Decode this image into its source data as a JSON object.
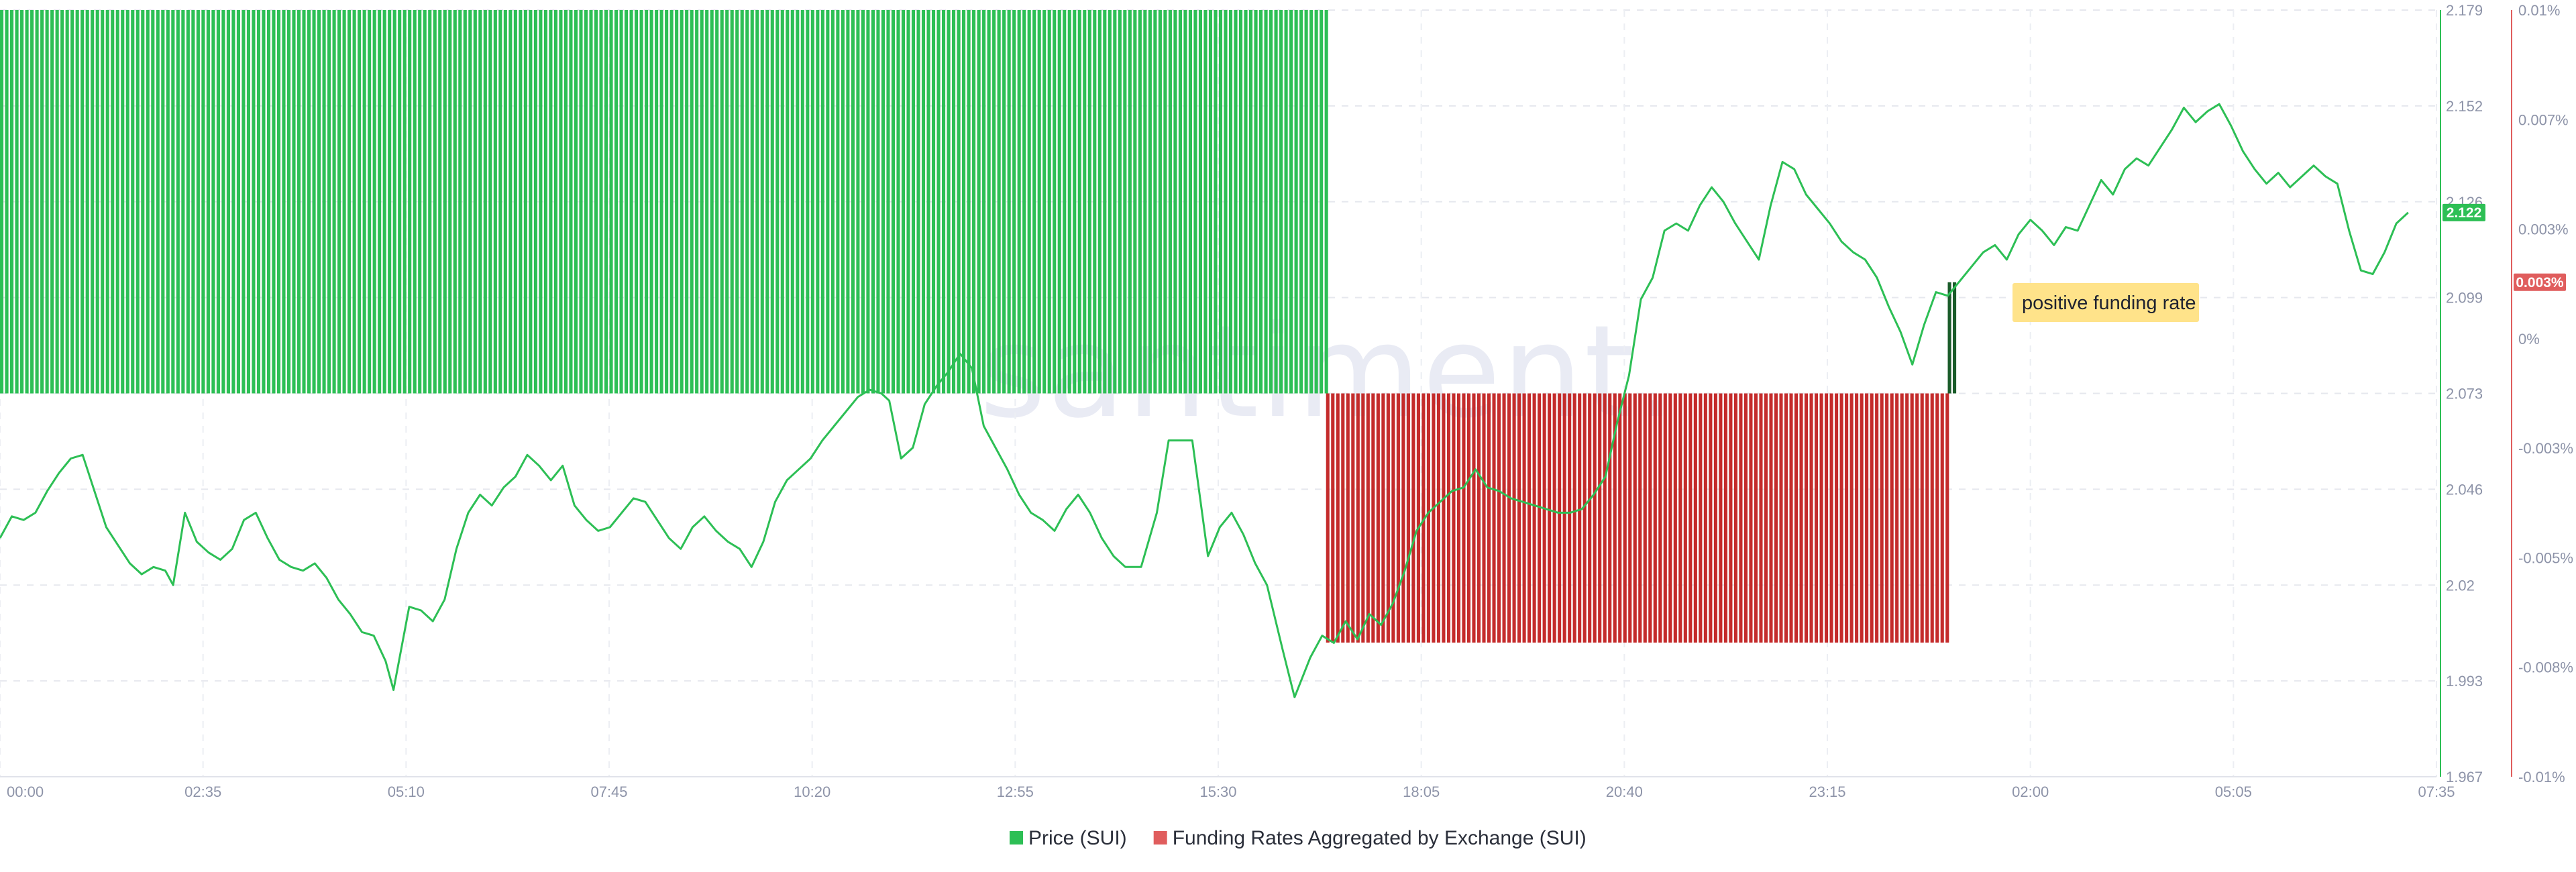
{
  "chart_data": {
    "type": "bar-line-combo",
    "watermark": "santiment.",
    "x_ticks": [
      "00:00",
      "02:35",
      "05:10",
      "07:45",
      "10:20",
      "12:55",
      "15:30",
      "18:05",
      "20:40",
      "23:15",
      "02:00",
      "05:05",
      "07:35"
    ],
    "y_left": {
      "ticks": [
        "2.179",
        "2.152",
        "2.126",
        "2.099",
        "2.073",
        "2.046",
        "2.02",
        "1.993",
        "1.967"
      ],
      "range": [
        1.967,
        2.179
      ]
    },
    "y_right": {
      "ticks": [
        "0.01%",
        "0.007%",
        "0.003%",
        "0%",
        "-0.003%",
        "-0.005%",
        "-0.008%",
        "-0.01%"
      ],
      "range": [
        -0.01,
        0.01
      ]
    },
    "price_last_label": "2.122",
    "funding_last_label": "0.003%",
    "annotation": "positive funding rate",
    "series": [
      {
        "name": "Price (SUI)",
        "kind": "line",
        "color": "#2dbf55",
        "points": [
          [
            0.0,
            2.033
          ],
          [
            0.15,
            2.039
          ],
          [
            0.3,
            2.038
          ],
          [
            0.45,
            2.04
          ],
          [
            0.6,
            2.046
          ],
          [
            0.75,
            2.051
          ],
          [
            0.9,
            2.055
          ],
          [
            1.05,
            2.056
          ],
          [
            1.2,
            2.046
          ],
          [
            1.35,
            2.036
          ],
          [
            1.5,
            2.031
          ],
          [
            1.65,
            2.026
          ],
          [
            1.8,
            2.023
          ],
          [
            1.95,
            2.025
          ],
          [
            2.1,
            2.024
          ],
          [
            2.2,
            2.02
          ],
          [
            2.35,
            2.04
          ],
          [
            2.5,
            2.032
          ],
          [
            2.65,
            2.029
          ],
          [
            2.8,
            2.027
          ],
          [
            2.95,
            2.03
          ],
          [
            3.1,
            2.038
          ],
          [
            3.25,
            2.04
          ],
          [
            3.4,
            2.033
          ],
          [
            3.55,
            2.027
          ],
          [
            3.7,
            2.025
          ],
          [
            3.85,
            2.024
          ],
          [
            4.0,
            2.026
          ],
          [
            4.15,
            2.022
          ],
          [
            4.3,
            2.016
          ],
          [
            4.45,
            2.012
          ],
          [
            4.6,
            2.007
          ],
          [
            4.75,
            2.006
          ],
          [
            4.9,
            1.999
          ],
          [
            5.0,
            1.991
          ],
          [
            5.2,
            2.014
          ],
          [
            5.35,
            2.013
          ],
          [
            5.5,
            2.01
          ],
          [
            5.65,
            2.016
          ],
          [
            5.8,
            2.03
          ],
          [
            5.95,
            2.04
          ],
          [
            6.1,
            2.045
          ],
          [
            6.25,
            2.042
          ],
          [
            6.4,
            2.047
          ],
          [
            6.55,
            2.05
          ],
          [
            6.7,
            2.056
          ],
          [
            6.85,
            2.053
          ],
          [
            7.0,
            2.049
          ],
          [
            7.15,
            2.053
          ],
          [
            7.3,
            2.042
          ],
          [
            7.45,
            2.038
          ],
          [
            7.6,
            2.035
          ],
          [
            7.75,
            2.036
          ],
          [
            7.9,
            2.04
          ],
          [
            8.05,
            2.044
          ],
          [
            8.2,
            2.043
          ],
          [
            8.35,
            2.038
          ],
          [
            8.5,
            2.033
          ],
          [
            8.65,
            2.03
          ],
          [
            8.8,
            2.036
          ],
          [
            8.95,
            2.039
          ],
          [
            9.1,
            2.035
          ],
          [
            9.25,
            2.032
          ],
          [
            9.4,
            2.03
          ],
          [
            9.55,
            2.025
          ],
          [
            9.7,
            2.032
          ],
          [
            9.85,
            2.043
          ],
          [
            10.0,
            2.049
          ],
          [
            10.15,
            2.052
          ],
          [
            10.3,
            2.055
          ],
          [
            10.45,
            2.06
          ],
          [
            10.6,
            2.064
          ],
          [
            10.75,
            2.068
          ],
          [
            10.9,
            2.072
          ],
          [
            11.05,
            2.074
          ],
          [
            11.2,
            2.073
          ],
          [
            11.3,
            2.071
          ],
          [
            11.45,
            2.055
          ],
          [
            11.6,
            2.058
          ],
          [
            11.75,
            2.07
          ],
          [
            11.9,
            2.075
          ],
          [
            12.05,
            2.079
          ],
          [
            12.2,
            2.084
          ],
          [
            12.35,
            2.08
          ],
          [
            12.5,
            2.064
          ],
          [
            12.65,
            2.058
          ],
          [
            12.8,
            2.052
          ],
          [
            12.95,
            2.045
          ],
          [
            13.1,
            2.04
          ],
          [
            13.25,
            2.038
          ],
          [
            13.4,
            2.035
          ],
          [
            13.55,
            2.041
          ],
          [
            13.7,
            2.045
          ],
          [
            13.85,
            2.04
          ],
          [
            14.0,
            2.033
          ],
          [
            14.15,
            2.028
          ],
          [
            14.3,
            2.025
          ],
          [
            14.5,
            2.025
          ],
          [
            14.7,
            2.04
          ],
          [
            14.85,
            2.06
          ],
          [
            15.0,
            2.06
          ],
          [
            15.15,
            2.06
          ],
          [
            15.35,
            2.028
          ],
          [
            15.5,
            2.036
          ],
          [
            15.65,
            2.04
          ],
          [
            15.8,
            2.034
          ],
          [
            15.95,
            2.026
          ],
          [
            16.1,
            2.02
          ],
          [
            16.3,
            2.002
          ],
          [
            16.45,
            1.989
          ],
          [
            16.65,
            2.0
          ],
          [
            16.8,
            2.006
          ],
          [
            16.95,
            2.004
          ],
          [
            17.1,
            2.01
          ],
          [
            17.25,
            2.005
          ],
          [
            17.4,
            2.012
          ],
          [
            17.55,
            2.009
          ],
          [
            17.7,
            2.015
          ],
          [
            17.85,
            2.024
          ],
          [
            18.0,
            2.035
          ],
          [
            18.15,
            2.04
          ],
          [
            18.3,
            2.043
          ],
          [
            18.45,
            2.046
          ],
          [
            18.6,
            2.047
          ],
          [
            18.75,
            2.052
          ],
          [
            18.9,
            2.047
          ],
          [
            19.05,
            2.046
          ],
          [
            19.2,
            2.044
          ],
          [
            19.35,
            2.043
          ],
          [
            19.5,
            2.042
          ],
          [
            19.65,
            2.041
          ],
          [
            19.8,
            2.04
          ],
          [
            19.95,
            2.04
          ],
          [
            20.1,
            2.041
          ],
          [
            20.25,
            2.045
          ],
          [
            20.4,
            2.05
          ],
          [
            20.55,
            2.065
          ],
          [
            20.7,
            2.078
          ],
          [
            20.85,
            2.099
          ],
          [
            21.0,
            2.105
          ],
          [
            21.15,
            2.118
          ],
          [
            21.3,
            2.12
          ],
          [
            21.45,
            2.118
          ],
          [
            21.6,
            2.125
          ],
          [
            21.75,
            2.13
          ],
          [
            21.9,
            2.126
          ],
          [
            22.05,
            2.12
          ],
          [
            22.2,
            2.115
          ],
          [
            22.35,
            2.11
          ],
          [
            22.5,
            2.125
          ],
          [
            22.65,
            2.137
          ],
          [
            22.8,
            2.135
          ],
          [
            22.95,
            2.128
          ],
          [
            23.1,
            2.124
          ],
          [
            23.25,
            2.12
          ],
          [
            23.4,
            2.115
          ],
          [
            23.55,
            2.112
          ],
          [
            23.7,
            2.11
          ],
          [
            23.85,
            2.105
          ],
          [
            24.0,
            2.097
          ],
          [
            24.15,
            2.09
          ],
          [
            24.3,
            2.081
          ],
          [
            24.45,
            2.092
          ],
          [
            24.6,
            2.101
          ],
          [
            24.75,
            2.1
          ],
          [
            24.9,
            2.104
          ],
          [
            25.05,
            2.108
          ],
          [
            25.2,
            2.112
          ],
          [
            25.35,
            2.114
          ],
          [
            25.5,
            2.11
          ],
          [
            25.65,
            2.117
          ],
          [
            25.8,
            2.121
          ],
          [
            25.95,
            2.118
          ],
          [
            26.1,
            2.114
          ],
          [
            26.25,
            2.119
          ],
          [
            26.4,
            2.118
          ],
          [
            26.55,
            2.125
          ],
          [
            26.7,
            2.132
          ],
          [
            26.85,
            2.128
          ],
          [
            27.0,
            2.135
          ],
          [
            27.15,
            2.138
          ],
          [
            27.3,
            2.136
          ],
          [
            27.45,
            2.141
          ],
          [
            27.6,
            2.146
          ],
          [
            27.75,
            2.152
          ],
          [
            27.9,
            2.148
          ],
          [
            28.05,
            2.151
          ],
          [
            28.2,
            2.153
          ],
          [
            28.35,
            2.147
          ],
          [
            28.5,
            2.14
          ],
          [
            28.65,
            2.135
          ],
          [
            28.8,
            2.131
          ],
          [
            28.95,
            2.134
          ],
          [
            29.1,
            2.13
          ],
          [
            29.25,
            2.133
          ],
          [
            29.4,
            2.136
          ],
          [
            29.55,
            2.133
          ],
          [
            29.7,
            2.131
          ],
          [
            29.85,
            2.118
          ],
          [
            30.0,
            2.107
          ],
          [
            30.15,
            2.106
          ],
          [
            30.3,
            2.112
          ],
          [
            30.45,
            2.12
          ],
          [
            30.6,
            2.123
          ]
        ]
      },
      {
        "name": "Funding Rates Aggregated by Exchange (SUI)",
        "kind": "bar",
        "color": "#e05d5d",
        "segments": [
          {
            "from": 0.0,
            "to": 16.85,
            "value": 0.01,
            "color": "#2dbf55"
          },
          {
            "from": 16.85,
            "to": 24.75,
            "value": -0.0065,
            "color": "#c42b2b"
          },
          {
            "from": 24.75,
            "to": 24.85,
            "value": 0.0029,
            "color": "#1a5c2a"
          }
        ]
      }
    ],
    "legend": [
      {
        "label": "Price (SUI)",
        "color": "#2dbf55"
      },
      {
        "label": "Funding Rates Aggregated by Exchange (SUI)",
        "color": "#e05d5d"
      }
    ]
  }
}
